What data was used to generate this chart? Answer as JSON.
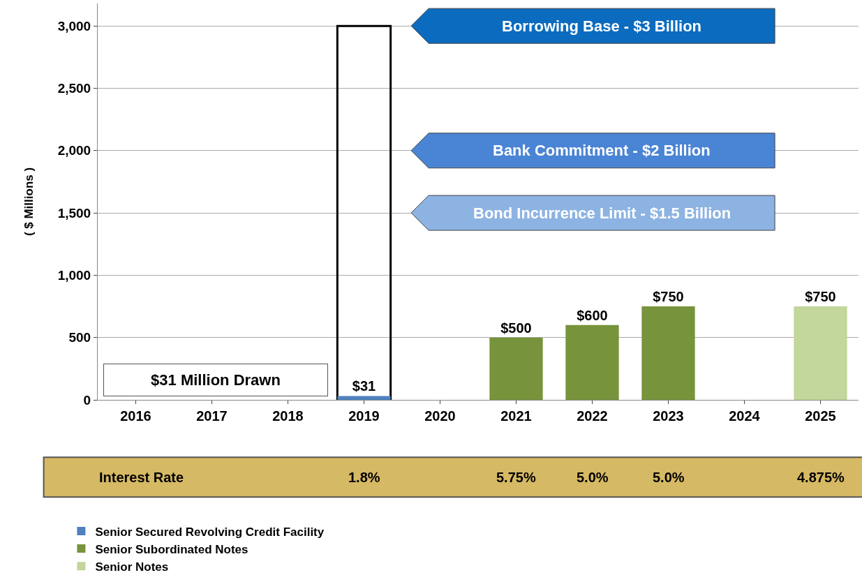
{
  "chart_data": {
    "type": "bar",
    "ylabel": "( $ Millions )",
    "categories": [
      "2016",
      "2017",
      "2018",
      "2019",
      "2020",
      "2021",
      "2022",
      "2023",
      "2024",
      "2025"
    ],
    "series": [
      {
        "color": "#000000",
        "values": [
          null,
          null,
          null,
          3000,
          null,
          null,
          null,
          null,
          null,
          null
        ]
      },
      {
        "name": "Senior Secured Revolving Credit Facility",
        "color": "#4f81bd",
        "values": [
          null,
          null,
          null,
          31,
          null,
          null,
          null,
          null,
          null,
          null
        ],
        "value_labels": [
          null,
          null,
          null,
          "$31",
          null,
          null,
          null,
          null,
          null,
          null
        ]
      },
      {
        "name": "Senior Subordinated Notes",
        "color": "#77933c",
        "values": [
          null,
          null,
          null,
          null,
          null,
          500,
          600,
          750,
          null,
          null
        ],
        "value_labels": [
          null,
          null,
          null,
          null,
          null,
          "$500",
          "$600",
          "$750",
          null,
          null
        ]
      },
      {
        "name": "Senior Notes",
        "color": "#c3d69b",
        "values": [
          null,
          null,
          null,
          null,
          null,
          null,
          null,
          null,
          null,
          750
        ],
        "value_labels": [
          null,
          null,
          null,
          null,
          null,
          null,
          null,
          null,
          null,
          "$750"
        ]
      }
    ],
    "bands": [
      {
        "axis": "y",
        "from": 2860,
        "to": 3140,
        "label": "Borrowing Base - $3 Billion",
        "color": "#0b6bbf"
      },
      {
        "axis": "y",
        "from": 1860,
        "to": 2140,
        "label": "Bank Commitment - $2 Billion",
        "color": "#4a84d4"
      },
      {
        "axis": "y",
        "from": 1360,
        "to": 1640,
        "label": "Bond Incurrence Limit - $1.5 Billion",
        "color": "#8db3e2"
      }
    ],
    "annotations": [
      "$31 Million Drawn",
      "Interest Rate",
      "1.8%",
      "5.75%",
      "5.0%",
      "5.0%",
      "4.875%"
    ],
    "ylim": [
      0,
      3180
    ],
    "yticks": [
      0,
      500,
      {
        "value": 1000,
        "label": "1,000"
      },
      {
        "value": 1500,
        "label": "1,500"
      },
      {
        "value": 2000,
        "label": "2,000"
      },
      {
        "value": 2500,
        "label": "2,500"
      },
      {
        "value": 3000,
        "label": "3,000"
      }
    ],
    "grid": "y",
    "legend": "bottom left"
  }
}
